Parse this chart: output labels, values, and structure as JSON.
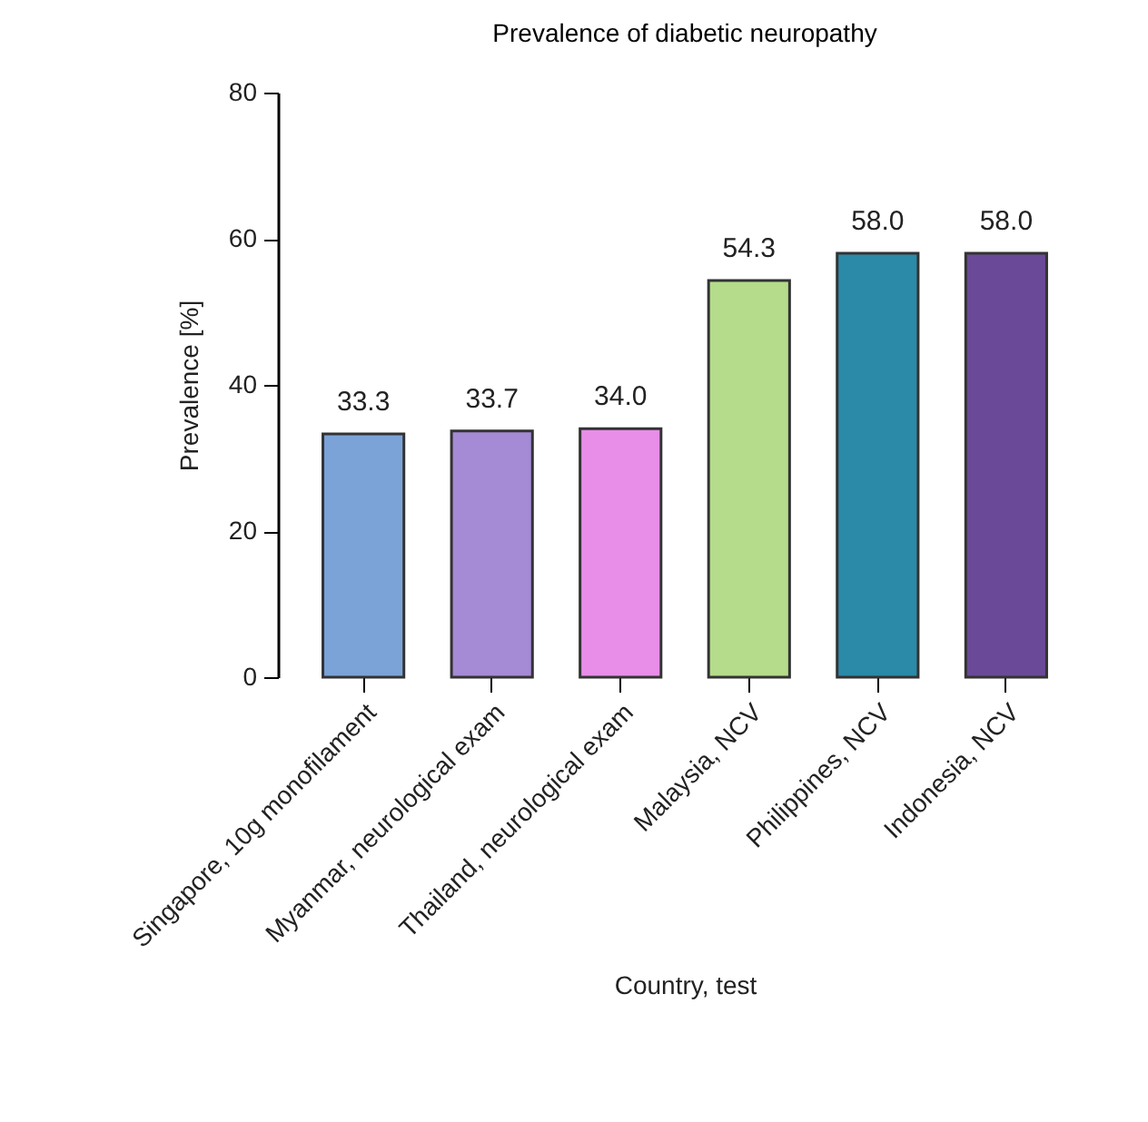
{
  "chart_data": {
    "type": "bar",
    "title": "Prevalence of diabetic neuropathy",
    "xlabel": "Country, test",
    "ylabel": "Prevalence [%]",
    "categories": [
      "Singapore, 10g monofilament",
      "Myanmar, neurological exam",
      "Thailand, neurological exam",
      "Malaysia, NCV",
      "Philippines, NCV",
      "Indonesia, NCV"
    ],
    "values": [
      33.3,
      33.7,
      34.0,
      54.3,
      58.0,
      58.0
    ],
    "value_labels": [
      "33.3",
      "33.7",
      "34.0",
      "54.3",
      "58.0",
      "58.0"
    ],
    "colors": [
      "#7ba3d8",
      "#a58ad6",
      "#e88ee8",
      "#b5dc8a",
      "#2a8aa8",
      "#6a4a98"
    ],
    "ylim": [
      0,
      80
    ],
    "yticks": [
      0,
      20,
      40,
      60,
      80
    ],
    "grid": false
  }
}
